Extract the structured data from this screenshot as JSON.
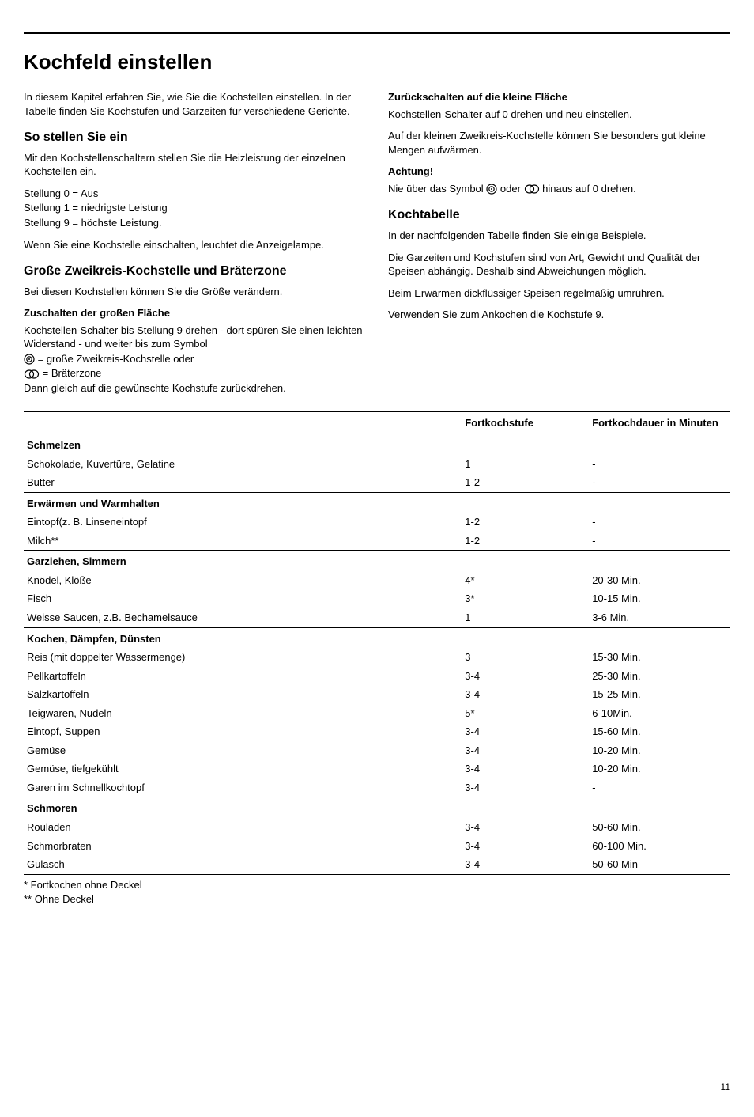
{
  "title": "Kochfeld einstellen",
  "intro": "In diesem Kapitel erfahren Sie, wie Sie die Kochstellen einstellen. In der Tabelle finden Sie Kochstufen und Garzeiten für verschiedene Gerichte.",
  "section_einstellen": {
    "heading": "So stellen Sie ein",
    "p1": "Mit den Kochstellenschaltern stellen Sie die Heizleistung der einzelnen Kochstellen ein.",
    "lines": [
      "Stellung 0 = Aus",
      "Stellung 1 = niedrigste Leistung",
      "Stellung 9 = höchste Leistung."
    ],
    "p2": "Wenn Sie eine Kochstelle einschalten, leuchtet die Anzeigelampe."
  },
  "section_zweikreis": {
    "heading": "Große Zweikreis-Kochstelle und Bräterzone",
    "p1": "Bei diesen Kochstellen können Sie die Größe verändern.",
    "sub1_head": "Zuschalten der großen Fläche",
    "sub1_body_a": "Kochstellen-Schalter bis Stellung 9 drehen - dort spüren Sie einen leichten Widerstand - und weiter bis zum Symbol",
    "icon1_label_a": " = große Zweikreis-Kochstelle oder",
    "icon2_label_a": " = Bräterzone",
    "sub1_body_b": "Dann gleich auf die gewünschte Kochstufe zurückdrehen."
  },
  "section_zurueck": {
    "sub2_head": "Zurückschalten auf die kleine Fläche",
    "sub2_p1": "Kochstellen-Schalter auf 0 drehen und neu einstellen.",
    "sub2_p2": "Auf der kleinen Zweikreis-Kochstelle können Sie besonders gut kleine Mengen aufwärmen.",
    "achtung_head": "Achtung!",
    "achtung_pre": "Nie über das Symbol ",
    "achtung_mid": " oder ",
    "achtung_post": " hinaus auf 0 drehen."
  },
  "section_kochtabelle": {
    "heading": "Kochtabelle",
    "p1": "In der nachfolgenden Tabelle finden Sie einige Beispiele.",
    "p2": "Die Garzeiten und Kochstufen sind von Art, Gewicht und Qualität der Speisen abhängig. Deshalb sind Abweichungen möglich.",
    "p3": "Beim Erwärmen dickflüssiger Speisen regelmäßig umrühren.",
    "p4": "Verwenden Sie zum Ankochen die Kochstufe 9."
  },
  "table": {
    "headers": [
      "",
      "Fortkochstufe",
      "Fortkochdauer in Minuten"
    ],
    "col_widths": [
      "62%",
      "18%",
      "20%"
    ],
    "border_color": "#000000",
    "fontsize": 13,
    "sections": [
      {
        "name": "Schmelzen",
        "rows": [
          [
            "Schokolade, Kuvertüre, Gelatine",
            "1",
            "-"
          ],
          [
            "Butter",
            "1-2",
            "-"
          ]
        ]
      },
      {
        "name": "Erwärmen und Warmhalten",
        "rows": [
          [
            "Eintopf(z. B. Linseneintopf",
            "1-2",
            "-"
          ],
          [
            "Milch**",
            "1-2",
            "-"
          ]
        ]
      },
      {
        "name": "Garziehen, Simmern",
        "rows": [
          [
            "Knödel, Klöße",
            "4*",
            "20-30 Min."
          ],
          [
            "Fisch",
            "3*",
            "10-15 Min."
          ],
          [
            "Weisse Saucen, z.B. Bechamelsauce",
            "1",
            "3-6 Min."
          ]
        ]
      },
      {
        "name": "Kochen, Dämpfen, Dünsten",
        "rows": [
          [
            "Reis (mit doppelter Wassermenge)",
            "3",
            "15-30 Min."
          ],
          [
            "Pellkartoffeln",
            "3-4",
            "25-30 Min."
          ],
          [
            "Salzkartoffeln",
            "3-4",
            "15-25 Min."
          ],
          [
            "Teigwaren, Nudeln",
            "5*",
            "6-10Min."
          ],
          [
            "Eintopf, Suppen",
            "3-4",
            "15-60 Min."
          ],
          [
            "Gemüse",
            "3-4",
            "10-20 Min."
          ],
          [
            "Gemüse, tiefgekühlt",
            "3-4",
            "10-20 Min."
          ],
          [
            "Garen im Schnellkochtopf",
            "3-4",
            "-"
          ]
        ]
      },
      {
        "name": "Schmoren",
        "rows": [
          [
            "Rouladen",
            "3-4",
            "50-60 Min."
          ],
          [
            "Schmorbraten",
            "3-4",
            "60-100 Min."
          ],
          [
            "Gulasch",
            "3-4",
            "50-60 Min"
          ]
        ]
      }
    ]
  },
  "footnotes": [
    "*   Fortkochen ohne Deckel",
    "** Ohne Deckel"
  ],
  "page_number": "11",
  "colors": {
    "background": "#ffffff",
    "text": "#000000",
    "rule": "#000000"
  }
}
